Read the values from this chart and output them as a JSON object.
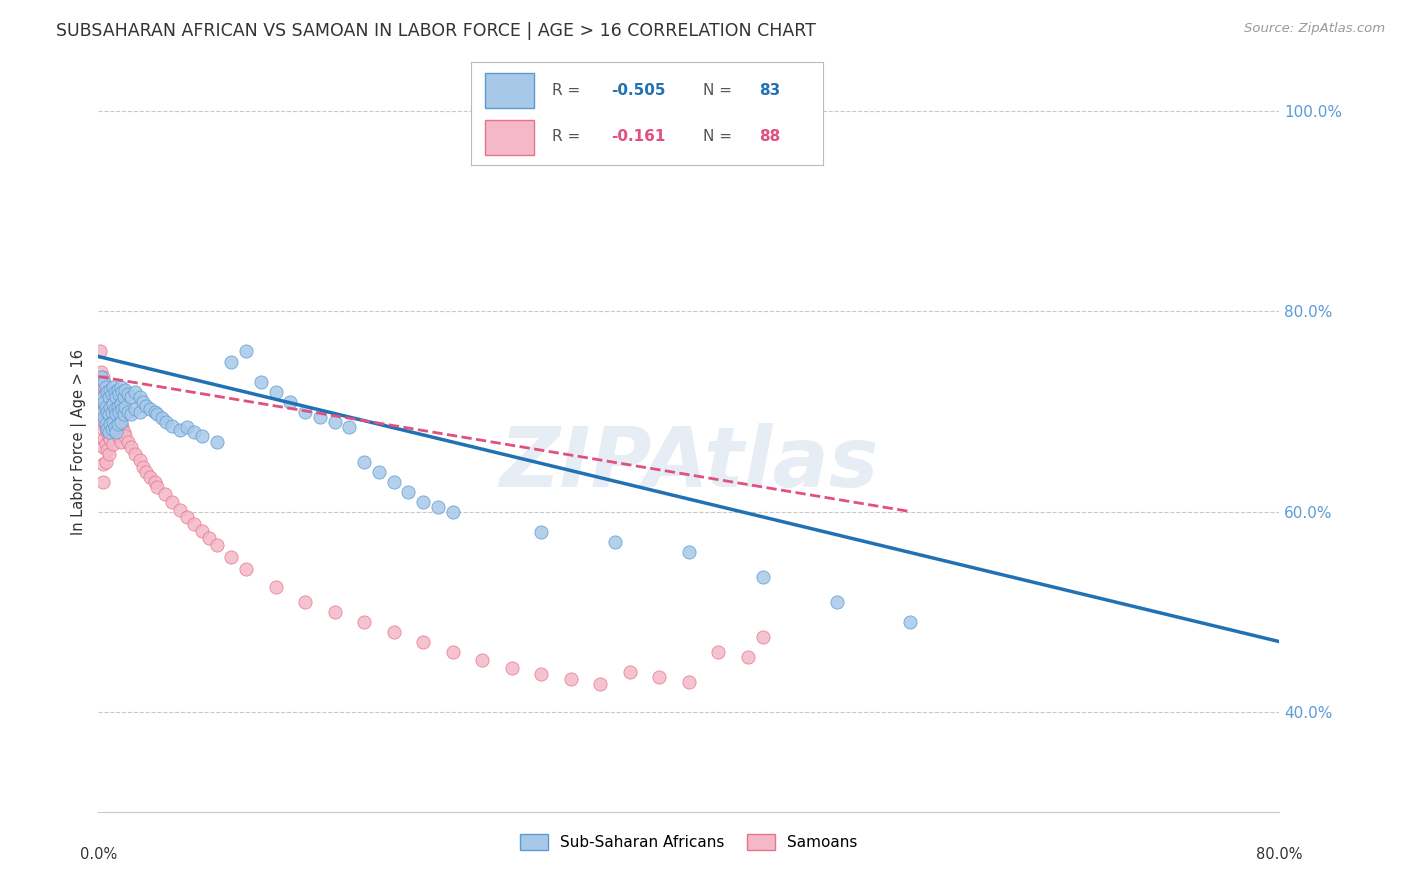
{
  "title": "SUBSAHARAN AFRICAN VS SAMOAN IN LABOR FORCE | AGE > 16 CORRELATION CHART",
  "source": "Source: ZipAtlas.com",
  "ylabel": "In Labor Force | Age > 16",
  "watermark": "ZIPAtlas",
  "legend_blue_label": "Sub-Saharan Africans",
  "legend_pink_label": "Samoans",
  "blue_color": "#a8c8e8",
  "pink_color": "#f4b8c8",
  "blue_edge_color": "#5b9bd5",
  "pink_edge_color": "#e8748c",
  "blue_line_color": "#2171b5",
  "pink_line_color": "#e05080",
  "blue_scatter": [
    [
      0.002,
      0.735
    ],
    [
      0.003,
      0.715
    ],
    [
      0.003,
      0.7
    ],
    [
      0.004,
      0.73
    ],
    [
      0.004,
      0.71
    ],
    [
      0.004,
      0.695
    ],
    [
      0.005,
      0.725
    ],
    [
      0.005,
      0.705
    ],
    [
      0.005,
      0.688
    ],
    [
      0.006,
      0.72
    ],
    [
      0.006,
      0.7
    ],
    [
      0.006,
      0.683
    ],
    [
      0.007,
      0.715
    ],
    [
      0.007,
      0.698
    ],
    [
      0.007,
      0.68
    ],
    [
      0.008,
      0.722
    ],
    [
      0.008,
      0.705
    ],
    [
      0.008,
      0.688
    ],
    [
      0.009,
      0.718
    ],
    [
      0.009,
      0.7
    ],
    [
      0.009,
      0.683
    ],
    [
      0.01,
      0.725
    ],
    [
      0.01,
      0.708
    ],
    [
      0.01,
      0.69
    ],
    [
      0.011,
      0.72
    ],
    [
      0.011,
      0.703
    ],
    [
      0.011,
      0.685
    ],
    [
      0.012,
      0.715
    ],
    [
      0.012,
      0.698
    ],
    [
      0.012,
      0.68
    ],
    [
      0.013,
      0.722
    ],
    [
      0.013,
      0.705
    ],
    [
      0.013,
      0.688
    ],
    [
      0.014,
      0.718
    ],
    [
      0.014,
      0.7
    ],
    [
      0.015,
      0.725
    ],
    [
      0.015,
      0.708
    ],
    [
      0.015,
      0.69
    ],
    [
      0.016,
      0.72
    ],
    [
      0.016,
      0.703
    ],
    [
      0.017,
      0.715
    ],
    [
      0.017,
      0.698
    ],
    [
      0.018,
      0.722
    ],
    [
      0.018,
      0.705
    ],
    [
      0.02,
      0.718
    ],
    [
      0.02,
      0.7
    ],
    [
      0.022,
      0.715
    ],
    [
      0.022,
      0.698
    ],
    [
      0.025,
      0.72
    ],
    [
      0.025,
      0.703
    ],
    [
      0.028,
      0.715
    ],
    [
      0.028,
      0.7
    ],
    [
      0.03,
      0.71
    ],
    [
      0.032,
      0.706
    ],
    [
      0.035,
      0.703
    ],
    [
      0.038,
      0.7
    ],
    [
      0.04,
      0.698
    ],
    [
      0.043,
      0.694
    ],
    [
      0.046,
      0.69
    ],
    [
      0.05,
      0.686
    ],
    [
      0.055,
      0.682
    ],
    [
      0.06,
      0.685
    ],
    [
      0.065,
      0.68
    ],
    [
      0.07,
      0.676
    ],
    [
      0.08,
      0.67
    ],
    [
      0.09,
      0.75
    ],
    [
      0.1,
      0.76
    ],
    [
      0.11,
      0.73
    ],
    [
      0.12,
      0.72
    ],
    [
      0.13,
      0.71
    ],
    [
      0.14,
      0.7
    ],
    [
      0.15,
      0.695
    ],
    [
      0.16,
      0.69
    ],
    [
      0.17,
      0.685
    ],
    [
      0.18,
      0.65
    ],
    [
      0.19,
      0.64
    ],
    [
      0.2,
      0.63
    ],
    [
      0.21,
      0.62
    ],
    [
      0.22,
      0.61
    ],
    [
      0.23,
      0.605
    ],
    [
      0.24,
      0.6
    ],
    [
      0.3,
      0.58
    ],
    [
      0.35,
      0.57
    ],
    [
      0.4,
      0.56
    ],
    [
      0.45,
      0.535
    ],
    [
      0.5,
      0.51
    ],
    [
      0.55,
      0.49
    ]
  ],
  "pink_scatter": [
    [
      0.001,
      0.76
    ],
    [
      0.001,
      0.73
    ],
    [
      0.001,
      0.71
    ],
    [
      0.001,
      0.695
    ],
    [
      0.002,
      0.74
    ],
    [
      0.002,
      0.72
    ],
    [
      0.002,
      0.705
    ],
    [
      0.002,
      0.69
    ],
    [
      0.003,
      0.735
    ],
    [
      0.003,
      0.715
    ],
    [
      0.003,
      0.7
    ],
    [
      0.003,
      0.683
    ],
    [
      0.003,
      0.665
    ],
    [
      0.003,
      0.648
    ],
    [
      0.003,
      0.63
    ],
    [
      0.004,
      0.725
    ],
    [
      0.004,
      0.708
    ],
    [
      0.004,
      0.69
    ],
    [
      0.004,
      0.673
    ],
    [
      0.005,
      0.72
    ],
    [
      0.005,
      0.703
    ],
    [
      0.005,
      0.685
    ],
    [
      0.005,
      0.668
    ],
    [
      0.005,
      0.65
    ],
    [
      0.006,
      0.715
    ],
    [
      0.006,
      0.698
    ],
    [
      0.006,
      0.68
    ],
    [
      0.006,
      0.662
    ],
    [
      0.007,
      0.71
    ],
    [
      0.007,
      0.693
    ],
    [
      0.007,
      0.675
    ],
    [
      0.007,
      0.658
    ],
    [
      0.008,
      0.708
    ],
    [
      0.008,
      0.69
    ],
    [
      0.008,
      0.673
    ],
    [
      0.009,
      0.705
    ],
    [
      0.009,
      0.688
    ],
    [
      0.01,
      0.702
    ],
    [
      0.01,
      0.685
    ],
    [
      0.01,
      0.668
    ],
    [
      0.011,
      0.7
    ],
    [
      0.011,
      0.683
    ],
    [
      0.012,
      0.698
    ],
    [
      0.012,
      0.68
    ],
    [
      0.013,
      0.695
    ],
    [
      0.013,
      0.678
    ],
    [
      0.014,
      0.692
    ],
    [
      0.014,
      0.675
    ],
    [
      0.015,
      0.688
    ],
    [
      0.015,
      0.67
    ],
    [
      0.016,
      0.685
    ],
    [
      0.017,
      0.68
    ],
    [
      0.018,
      0.676
    ],
    [
      0.02,
      0.67
    ],
    [
      0.022,
      0.665
    ],
    [
      0.025,
      0.658
    ],
    [
      0.028,
      0.652
    ],
    [
      0.03,
      0.645
    ],
    [
      0.032,
      0.64
    ],
    [
      0.035,
      0.635
    ],
    [
      0.038,
      0.63
    ],
    [
      0.04,
      0.625
    ],
    [
      0.045,
      0.618
    ],
    [
      0.05,
      0.61
    ],
    [
      0.055,
      0.602
    ],
    [
      0.06,
      0.595
    ],
    [
      0.065,
      0.588
    ],
    [
      0.07,
      0.581
    ],
    [
      0.075,
      0.574
    ],
    [
      0.08,
      0.567
    ],
    [
      0.09,
      0.555
    ],
    [
      0.1,
      0.543
    ],
    [
      0.12,
      0.525
    ],
    [
      0.14,
      0.51
    ],
    [
      0.16,
      0.5
    ],
    [
      0.18,
      0.49
    ],
    [
      0.2,
      0.48
    ],
    [
      0.22,
      0.47
    ],
    [
      0.24,
      0.46
    ],
    [
      0.26,
      0.452
    ],
    [
      0.28,
      0.444
    ],
    [
      0.3,
      0.438
    ],
    [
      0.32,
      0.433
    ],
    [
      0.34,
      0.428
    ],
    [
      0.36,
      0.44
    ],
    [
      0.38,
      0.435
    ],
    [
      0.4,
      0.43
    ],
    [
      0.42,
      0.46
    ],
    [
      0.44,
      0.455
    ],
    [
      0.45,
      0.475
    ]
  ],
  "xmin": 0.0,
  "xmax": 0.8,
  "ymin": 0.3,
  "ymax": 1.04,
  "blue_trend_x": [
    0.0,
    0.8
  ],
  "blue_trend_y": [
    0.755,
    0.47
  ],
  "pink_trend_x": [
    0.0,
    0.55
  ],
  "pink_trend_y": [
    0.735,
    0.6
  ],
  "yticks": [
    0.4,
    0.6,
    0.8,
    1.0
  ],
  "ytick_labels": [
    "40.0%",
    "60.0%",
    "80.0%",
    "100.0%"
  ],
  "xtick_left_label": "0.0%",
  "xtick_right_label": "80.0%",
  "background_color": "#ffffff",
  "grid_color": "#c8c8c8",
  "title_color": "#333333",
  "ytick_color": "#5b9bd5"
}
